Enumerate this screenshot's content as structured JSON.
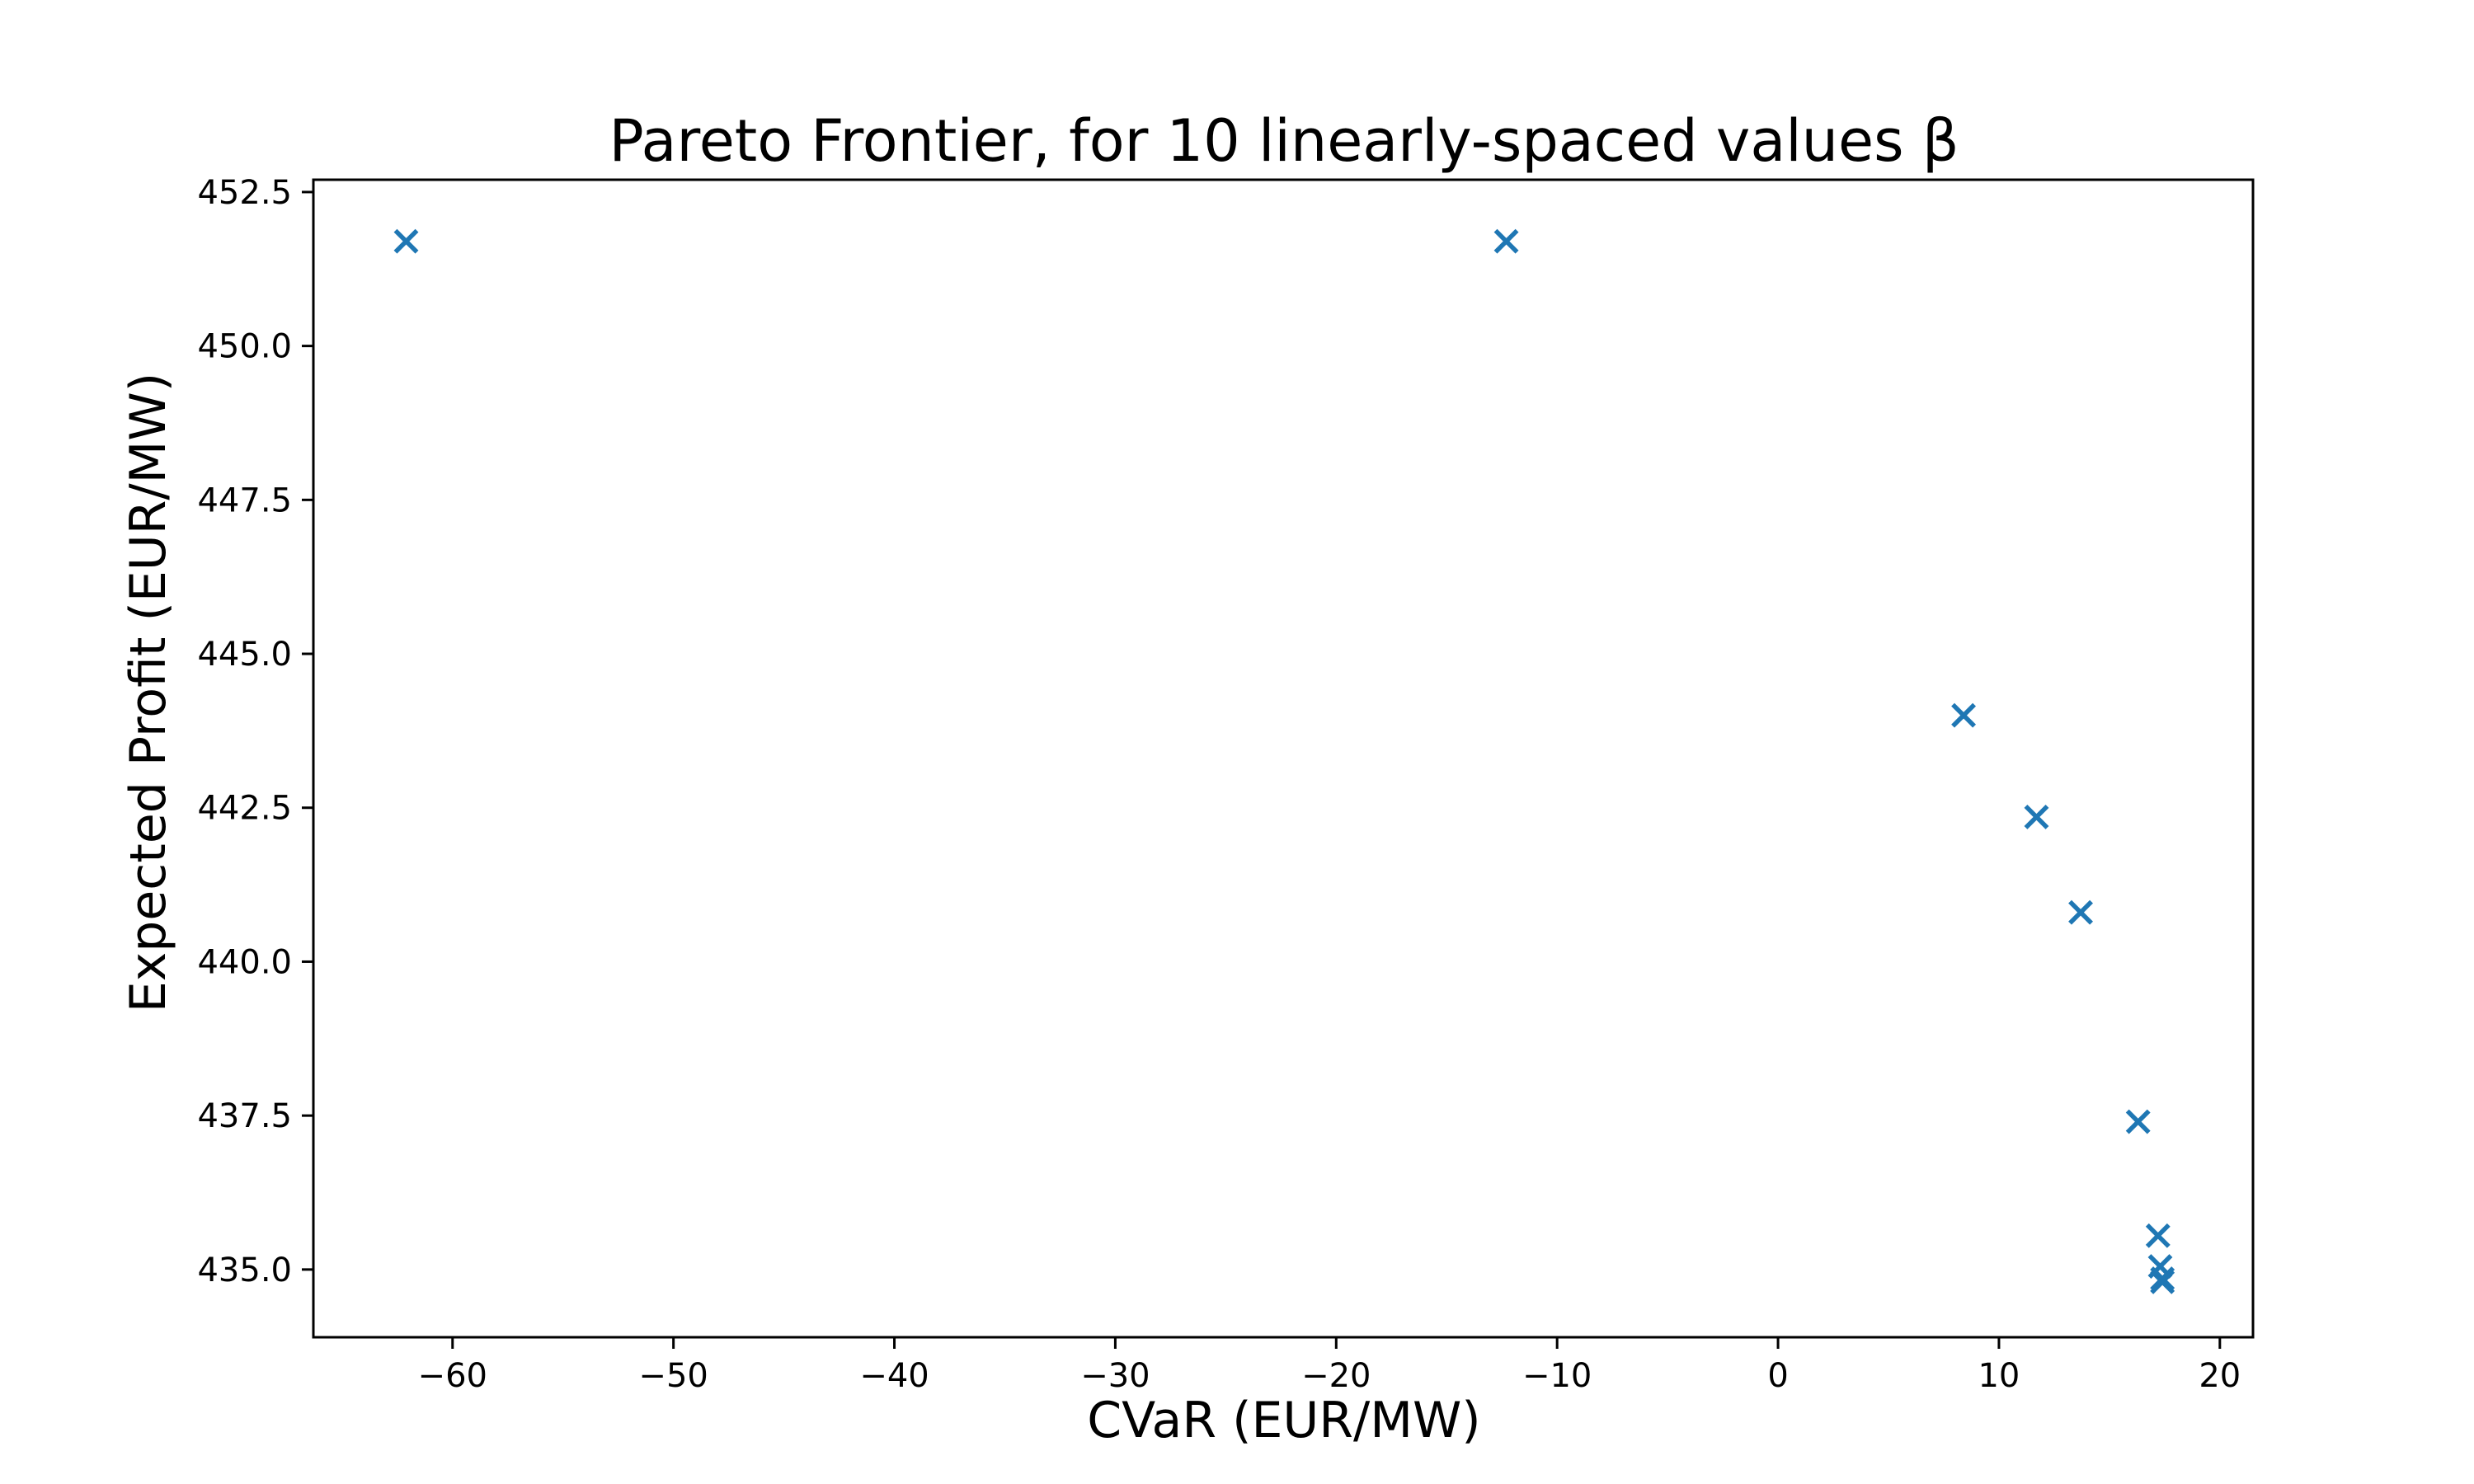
{
  "chart_data": {
    "type": "scatter",
    "title": "Pareto Frontier, for 10 linearly-spaced values β",
    "xlabel": "CVaR (EUR/MW)",
    "ylabel": "Expected Profit (EUR/MW)",
    "xlim": [
      -66.3,
      21.5
    ],
    "ylim": [
      433.9,
      452.7
    ],
    "x_ticks": [
      -60,
      -50,
      -40,
      -30,
      -20,
      -10,
      0,
      10,
      20
    ],
    "x_tick_labels": [
      "−60",
      "−50",
      "−40",
      "−30",
      "−20",
      "−10",
      "0",
      "10",
      "20"
    ],
    "y_ticks": [
      435.0,
      437.5,
      440.0,
      442.5,
      445.0,
      447.5,
      450.0,
      452.5
    ],
    "y_tick_labels": [
      "435.0",
      "437.5",
      "440.0",
      "442.5",
      "445.0",
      "447.5",
      "450.0",
      "452.5"
    ],
    "grid": false,
    "marker": "x",
    "color": "#1f77b4",
    "series": [
      {
        "x": [
          -62.1,
          -12.3,
          8.4,
          11.7,
          13.7,
          16.3,
          17.2,
          17.3,
          17.4,
          17.4
        ],
        "y": [
          451.7,
          451.7,
          444.0,
          442.35,
          440.8,
          437.4,
          435.55,
          435.05,
          434.85,
          434.8
        ]
      }
    ]
  }
}
